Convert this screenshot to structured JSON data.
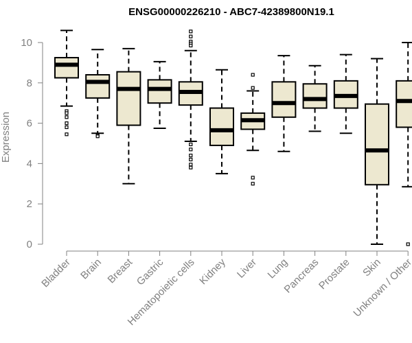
{
  "chart_data": {
    "type": "box",
    "title": "ENSG00000226210 - ABC7-42389800N19.1",
    "xlabel": "",
    "ylabel": "Expression",
    "ylim": [
      0,
      10.6
    ],
    "yticks": [
      0,
      2,
      4,
      6,
      8,
      10
    ],
    "grid": false,
    "box_color": "#ede8d0",
    "categories": [
      "Bladder",
      "Brain",
      "Breast",
      "Gastric",
      "Hematopoietic cells",
      "Kidney",
      "Liver",
      "Lung",
      "Pancreas",
      "Prostate",
      "Skin",
      "Unknown / Other"
    ],
    "boxes": [
      {
        "whisker_low": 6.85,
        "q1": 8.25,
        "median": 8.9,
        "q3": 9.25,
        "whisker_high": 10.6,
        "outliers": [
          6.6,
          6.5,
          6.3,
          6.0,
          5.8,
          5.45
        ]
      },
      {
        "whisker_low": 5.5,
        "q1": 7.25,
        "median": 8.05,
        "q3": 8.4,
        "whisker_high": 9.65,
        "outliers": [
          5.4,
          5.35
        ]
      },
      {
        "whisker_low": 3.0,
        "q1": 5.9,
        "median": 7.7,
        "q3": 8.55,
        "whisker_high": 9.7,
        "outliers": []
      },
      {
        "whisker_low": 5.75,
        "q1": 7.0,
        "median": 7.7,
        "q3": 8.15,
        "whisker_high": 9.05,
        "outliers": []
      },
      {
        "whisker_low": 5.1,
        "q1": 6.9,
        "median": 7.55,
        "q3": 8.05,
        "whisker_high": 9.6,
        "outliers": [
          10.55,
          10.3,
          10.05,
          9.95,
          9.85,
          4.95,
          4.7,
          4.4,
          4.2,
          3.95,
          3.8
        ]
      },
      {
        "whisker_low": 3.5,
        "q1": 4.9,
        "median": 5.65,
        "q3": 6.75,
        "whisker_high": 8.65,
        "outliers": []
      },
      {
        "whisker_low": 4.65,
        "q1": 5.7,
        "median": 6.15,
        "q3": 6.5,
        "whisker_high": 7.6,
        "outliers": [
          8.4,
          7.75,
          3.3,
          3.0
        ]
      },
      {
        "whisker_low": 4.6,
        "q1": 6.3,
        "median": 7.0,
        "q3": 8.05,
        "whisker_high": 9.35,
        "outliers": []
      },
      {
        "whisker_low": 5.6,
        "q1": 6.75,
        "median": 7.2,
        "q3": 7.95,
        "whisker_high": 8.85,
        "outliers": []
      },
      {
        "whisker_low": 5.5,
        "q1": 6.75,
        "median": 7.35,
        "q3": 8.1,
        "whisker_high": 9.4,
        "outliers": []
      },
      {
        "whisker_low": 0.0,
        "q1": 2.95,
        "median": 4.65,
        "q3": 6.95,
        "whisker_high": 9.2,
        "outliers": []
      },
      {
        "whisker_low": 2.85,
        "q1": 5.8,
        "median": 7.1,
        "q3": 8.1,
        "whisker_high": 10.0,
        "outliers": [
          0.0
        ]
      }
    ]
  }
}
